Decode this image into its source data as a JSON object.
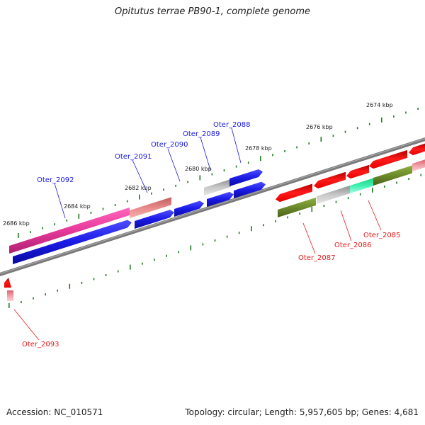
{
  "title": "Opitutus terrae PB90-1, complete genome",
  "footer": {
    "accession": "Accession: NC_010571",
    "summary": "Topology: circular; Length: 5,957,605 bp; Genes: 4,681"
  },
  "scale_labels": [
    "2674 kbp",
    "2676 kbp",
    "2678 kbp",
    "2680 kbp",
    "2682 kbp",
    "2684 kbp",
    "2686 kbp"
  ],
  "genes_top": [
    "Oter_2088",
    "Oter_2089",
    "Oter_2090",
    "Oter_2091",
    "Oter_2092"
  ],
  "genes_bottom": [
    "Oter_2085",
    "Oter_2086",
    "Oter_2087",
    "Oter_2093"
  ],
  "colors": {
    "blue": "#1a1ae6",
    "magenta": "#e6399b",
    "salmon": "#e88a8a",
    "gray": "#b5b5b5",
    "red": "#e61a1a",
    "olive": "#6b8a2a",
    "mint": "#2ee8a0",
    "pink": "#f0a0a8",
    "tick": "#1f7a1f",
    "genome_line": "#808080"
  }
}
